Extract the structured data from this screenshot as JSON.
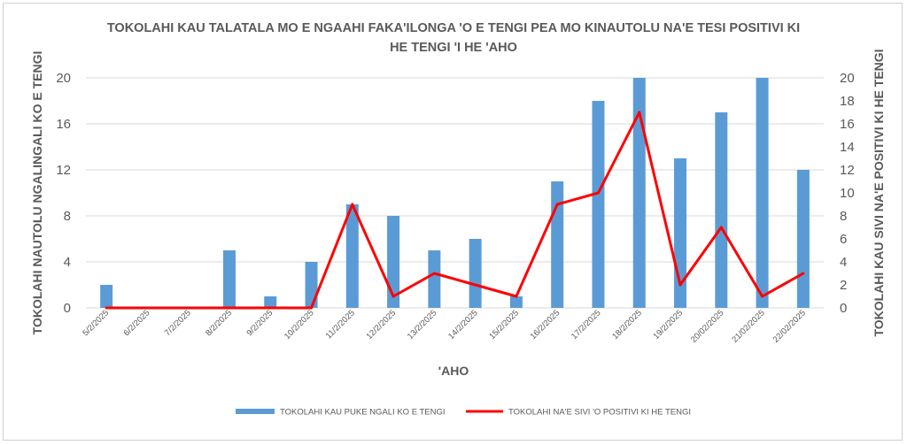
{
  "chart_data": {
    "type": "bar",
    "title_lines": [
      "TOKOLAHI KAU TALATALA MO E NGAAHI FAKA'ILONGA 'O E TENGI PEA MO KINAUTOLU NA'E TESI POSITIVI KI",
      "HE TENGI 'I HE 'AHO"
    ],
    "xlabel": "'AHO",
    "ylabel_left": "TOKOLAHI NAUTOLU NGALINGALI KO E TENGI",
    "ylabel_right": "TOKOLAHI KAU SIVI NA'E POSITIVI KI HE TENGI",
    "categories": [
      "5/2/2025",
      "6/2/2025",
      "7/2/2025",
      "8/2/2025",
      "9/2/2025",
      "10/2/2025",
      "11/2/2025",
      "12/2/2025",
      "13/2/2025",
      "14/2/2025",
      "15/2/2025",
      "16/2/2025",
      "17/2/2025",
      "18/2/2025",
      "19/2/2025",
      "20/02/2025",
      "21/02/2025",
      "22/02/2025"
    ],
    "series": [
      {
        "name": "TOKOLAHI KAU PUKE NGALI KO E TENGI",
        "type": "bar",
        "axis": "left",
        "color": "#5b9bd5",
        "values": [
          2,
          0,
          0,
          5,
          1,
          4,
          9,
          8,
          5,
          6,
          1,
          11,
          18,
          20,
          13,
          17,
          20,
          12
        ]
      },
      {
        "name": "TOKOLAHI NA'E SIVI 'O POSITIVI KI HE TENGI",
        "type": "line",
        "axis": "right",
        "color": "#ff0000",
        "values": [
          0,
          0,
          0,
          0,
          0,
          0,
          9,
          1,
          3,
          2,
          1,
          9,
          10,
          17,
          2,
          7,
          1,
          3
        ]
      }
    ],
    "ylim_left": [
      0,
      20
    ],
    "yticks_left": [
      "0",
      "4",
      "8",
      "12",
      "16",
      "20"
    ],
    "ylim_right": [
      0,
      20
    ],
    "yticks_right": [
      "0",
      "2",
      "4",
      "6",
      "8",
      "10",
      "12",
      "14",
      "16",
      "18",
      "20"
    ],
    "grid": "horizontal",
    "legend_position": "bottom"
  }
}
